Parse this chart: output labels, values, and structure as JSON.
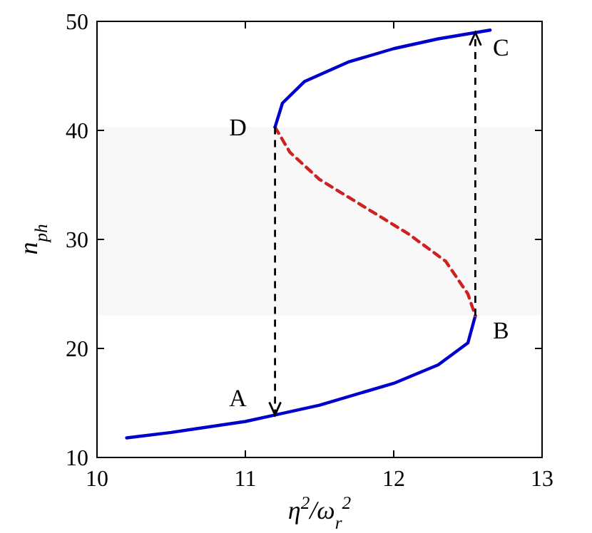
{
  "chart_data": {
    "type": "line",
    "xlabel": "η$^{2}$/ω$_{r}$$^{2}$",
    "ylabel": "n$_{ph}$",
    "xlim": [
      10,
      13
    ],
    "xticks": [
      10,
      11,
      12,
      13
    ],
    "ylim": [
      10,
      50
    ],
    "yticks": [
      10,
      20,
      30,
      40,
      50
    ],
    "grid": false,
    "bands": [
      {
        "axis": "y",
        "from": 23,
        "to": 40.3,
        "color": "#f8f8f8"
      }
    ],
    "series": [
      {
        "color": "#0000cc",
        "line_style": "solid",
        "x": [
          10.2,
          10.5,
          11.0,
          11.2,
          11.5,
          12.0,
          12.3,
          12.5,
          12.55
        ],
        "values": [
          11.8,
          12.3,
          13.3,
          13.9,
          14.8,
          16.8,
          18.5,
          20.5,
          23
        ]
      },
      {
        "color": "#cc2222",
        "line_style": "dashed",
        "x": [
          11.2,
          11.3,
          11.5,
          11.8,
          12.1,
          12.35,
          12.5,
          12.55
        ],
        "values": [
          40.3,
          38,
          35.5,
          33,
          30.5,
          28,
          25,
          23
        ]
      },
      {
        "color": "#0000cc",
        "line_style": "solid",
        "x": [
          11.2,
          11.25,
          11.4,
          11.7,
          12.0,
          12.3,
          12.65
        ],
        "values": [
          40.3,
          42.5,
          44.5,
          46.3,
          47.5,
          48.4,
          49.2
        ]
      }
    ],
    "annotations": [
      "A",
      "B",
      "C",
      "D"
    ]
  }
}
